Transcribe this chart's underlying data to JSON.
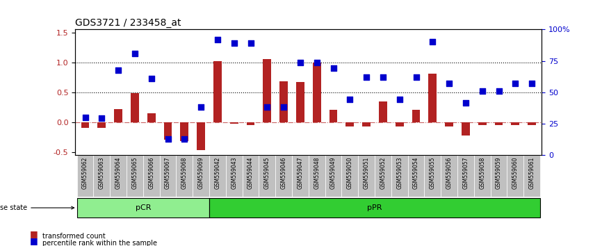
{
  "title": "GDS3721 / 233458_at",
  "samples": [
    "GSM559062",
    "GSM559063",
    "GSM559064",
    "GSM559065",
    "GSM559066",
    "GSM559067",
    "GSM559068",
    "GSM559069",
    "GSM559042",
    "GSM559043",
    "GSM559044",
    "GSM559045",
    "GSM559046",
    "GSM559047",
    "GSM559048",
    "GSM559049",
    "GSM559050",
    "GSM559051",
    "GSM559052",
    "GSM559053",
    "GSM559054",
    "GSM559055",
    "GSM559056",
    "GSM559057",
    "GSM559058",
    "GSM559059",
    "GSM559060",
    "GSM559061"
  ],
  "bar_values": [
    -0.1,
    -0.1,
    0.22,
    0.48,
    0.15,
    -0.3,
    -0.32,
    -0.47,
    1.02,
    -0.03,
    -0.05,
    1.05,
    0.68,
    0.67,
    1.0,
    0.21,
    -0.07,
    -0.07,
    0.35,
    -0.07,
    0.2,
    0.81,
    -0.08,
    -0.22,
    -0.05,
    -0.05,
    -0.05,
    -0.05
  ],
  "dot_values": [
    0.08,
    0.07,
    0.87,
    1.15,
    0.73,
    -0.28,
    -0.28,
    0.25,
    1.38,
    1.32,
    1.32,
    0.25,
    0.25,
    1.0,
    1.0,
    0.9,
    0.38,
    0.75,
    0.75,
    0.38,
    0.75,
    1.35,
    0.65,
    0.32,
    0.52,
    0.52,
    0.65,
    0.65
  ],
  "pCR_count": 8,
  "pPR_count": 20,
  "bar_color": "#B22222",
  "dot_color": "#0000CD",
  "ylim_left": [
    -0.55,
    1.55
  ],
  "ylim_right": [
    0,
    100
  ],
  "yticks_left": [
    -0.5,
    0.0,
    0.5,
    1.0,
    1.5
  ],
  "yticks_right": [
    0,
    25,
    50,
    75,
    100
  ],
  "hline_dotted": [
    0.5,
    1.0
  ],
  "hline_dashed": 0.0,
  "xlabel_fontsize": 7,
  "title_fontsize": 10,
  "pCR_color": "#90EE90",
  "pPR_color": "#32CD32",
  "label_bg_color": "#C0C0C0"
}
